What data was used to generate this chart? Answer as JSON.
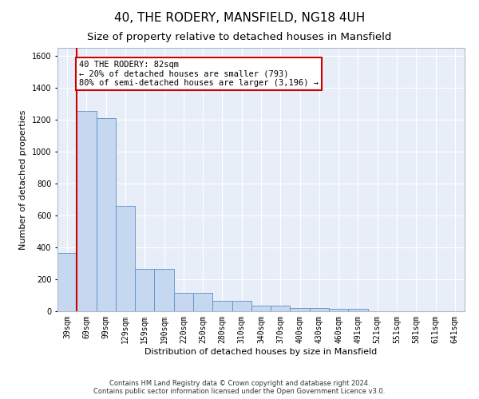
{
  "title": "40, THE RODERY, MANSFIELD, NG18 4UH",
  "subtitle": "Size of property relative to detached houses in Mansfield",
  "xlabel": "Distribution of detached houses by size in Mansfield",
  "ylabel": "Number of detached properties",
  "footer_line1": "Contains HM Land Registry data © Crown copyright and database right 2024.",
  "footer_line2": "Contains public sector information licensed under the Open Government Licence v3.0.",
  "categories": [
    "39sqm",
    "69sqm",
    "99sqm",
    "129sqm",
    "159sqm",
    "190sqm",
    "220sqm",
    "250sqm",
    "280sqm",
    "310sqm",
    "340sqm",
    "370sqm",
    "400sqm",
    "430sqm",
    "460sqm",
    "491sqm",
    "521sqm",
    "551sqm",
    "581sqm",
    "611sqm",
    "641sqm"
  ],
  "values": [
    365,
    1255,
    1210,
    660,
    265,
    265,
    115,
    115,
    65,
    65,
    35,
    35,
    20,
    20,
    15,
    15,
    0,
    0,
    0,
    0,
    0
  ],
  "bar_color": "#c5d8ef",
  "bar_edge_color": "#5b8fc9",
  "vline_color": "#cc0000",
  "vline_pos": 1.5,
  "annotation_text": "40 THE RODERY: 82sqm\n← 20% of detached houses are smaller (793)\n80% of semi-detached houses are larger (3,196) →",
  "annotation_box_color": "#ffffff",
  "annotation_box_edge": "#cc0000",
  "ylim": [
    0,
    1650
  ],
  "yticks": [
    0,
    200,
    400,
    600,
    800,
    1000,
    1200,
    1400,
    1600
  ],
  "background_color": "#e8eef8",
  "grid_color": "#ffffff",
  "title_fontsize": 11,
  "subtitle_fontsize": 9.5,
  "axis_label_fontsize": 8,
  "tick_fontsize": 7,
  "footer_fontsize": 6
}
